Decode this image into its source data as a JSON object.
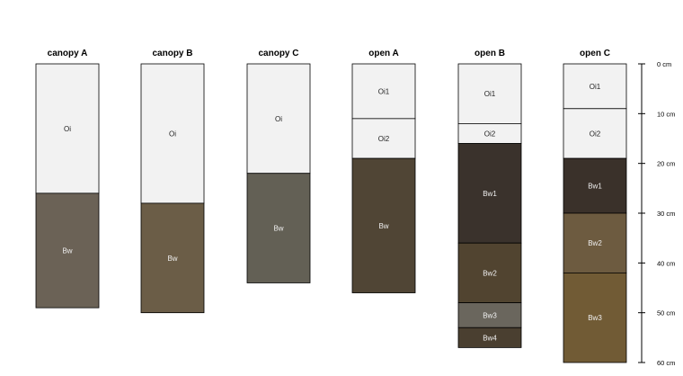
{
  "chart_data": {
    "type": "soil-profile",
    "title": "",
    "xlabel": "",
    "ylabel": "",
    "depth_unit": "cm",
    "ylim": [
      0,
      60
    ],
    "ticks": [
      0,
      10,
      20,
      30,
      40,
      50,
      60
    ],
    "tick_labels": [
      "0 cm",
      "10 cm",
      "20 cm",
      "30 cm",
      "40 cm",
      "50 cm",
      "60 cm"
    ],
    "grid": false,
    "profiles": [
      {
        "name": "canopy A",
        "horizons": [
          {
            "label": "Oi",
            "top": 0,
            "bottom": 26,
            "color": "#f2f2f2"
          },
          {
            "label": "Bw",
            "top": 26,
            "bottom": 49,
            "color": "#6b6256"
          }
        ]
      },
      {
        "name": "canopy B",
        "horizons": [
          {
            "label": "Oi",
            "top": 0,
            "bottom": 28,
            "color": "#f2f2f2"
          },
          {
            "label": "Bw",
            "top": 28,
            "bottom": 50,
            "color": "#6b5d47"
          }
        ]
      },
      {
        "name": "canopy C",
        "horizons": [
          {
            "label": "Oi",
            "top": 0,
            "bottom": 22,
            "color": "#f2f2f2"
          },
          {
            "label": "Bw",
            "top": 22,
            "bottom": 44,
            "color": "#636055"
          }
        ]
      },
      {
        "name": "open A",
        "horizons": [
          {
            "label": "Oi1",
            "top": 0,
            "bottom": 11,
            "color": "#f2f2f2"
          },
          {
            "label": "Oi2",
            "top": 11,
            "bottom": 19,
            "color": "#f2f2f2"
          },
          {
            "label": "Bw",
            "top": 19,
            "bottom": 46,
            "color": "#504535"
          }
        ]
      },
      {
        "name": "open B",
        "horizons": [
          {
            "label": "Oi1",
            "top": 0,
            "bottom": 12,
            "color": "#f2f2f2"
          },
          {
            "label": "Oi2",
            "top": 12,
            "bottom": 16,
            "color": "#f2f2f2"
          },
          {
            "label": "Bw1",
            "top": 16,
            "bottom": 36,
            "color": "#3a322c"
          },
          {
            "label": "Bw2",
            "top": 36,
            "bottom": 48,
            "color": "#514430"
          },
          {
            "label": "Bw3",
            "top": 48,
            "bottom": 53,
            "color": "#6a665d"
          },
          {
            "label": "Bw4",
            "top": 53,
            "bottom": 57,
            "color": "#4a3f30"
          }
        ]
      },
      {
        "name": "open C",
        "horizons": [
          {
            "label": "Oi1",
            "top": 0,
            "bottom": 9,
            "color": "#f2f2f2"
          },
          {
            "label": "Oi2",
            "top": 9,
            "bottom": 19,
            "color": "#f2f2f2"
          },
          {
            "label": "Bw1",
            "top": 19,
            "bottom": 30,
            "color": "#3a312a"
          },
          {
            "label": "Bw2",
            "top": 30,
            "bottom": 42,
            "color": "#6d5b40"
          },
          {
            "label": "Bw3",
            "top": 42,
            "bottom": 60,
            "color": "#715b35"
          }
        ]
      }
    ]
  }
}
